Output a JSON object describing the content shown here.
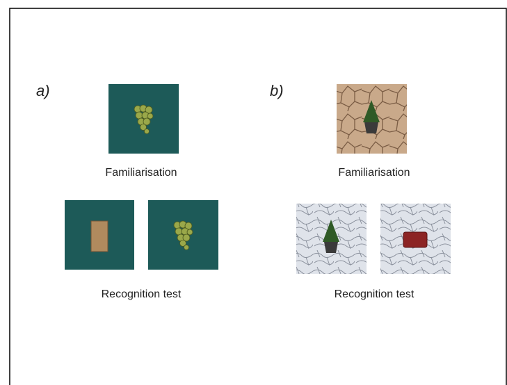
{
  "panels": [
    {
      "label": "a)",
      "familiarisation": "Familiarisation",
      "recognition": "Recognition test"
    },
    {
      "label": "b)",
      "familiarisation": "Familiarisation",
      "recognition": "Recognition test"
    }
  ]
}
